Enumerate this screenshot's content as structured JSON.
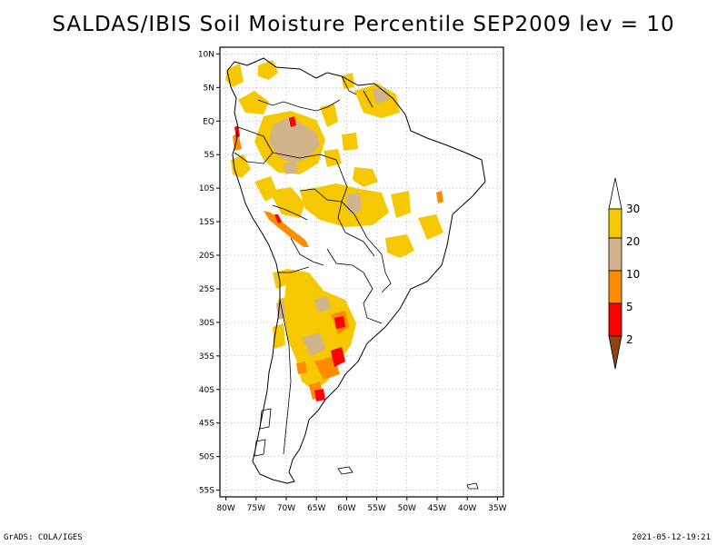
{
  "title": "SALDAS/IBIS Soil Moisture Percentile SEP2009 lev = 10",
  "map": {
    "lat_labels": [
      "10N",
      "5N",
      "EQ",
      "5S",
      "10S",
      "15S",
      "20S",
      "25S",
      "30S",
      "35S",
      "40S",
      "45S",
      "50S",
      "55S"
    ],
    "lon_labels": [
      "80W",
      "75W",
      "70W",
      "65W",
      "60W",
      "55W",
      "50W",
      "45W",
      "40W",
      "35W"
    ],
    "lat_range": [
      -56,
      11
    ],
    "lon_range": [
      -81,
      -34
    ]
  },
  "colorbar": {
    "labels": [
      "30",
      "20",
      "10",
      "5",
      "2"
    ],
    "colors": {
      "over_30": "#ffffff",
      "p20_30": "#f5c800",
      "p10_20": "#d2b48c",
      "p5_10": "#ff8c00",
      "p2_5": "#ff0000",
      "under_2": "#8b4513"
    }
  },
  "footer": {
    "left": "GrADS: COLA/IGES",
    "right": "2021-05-12-19:21"
  }
}
